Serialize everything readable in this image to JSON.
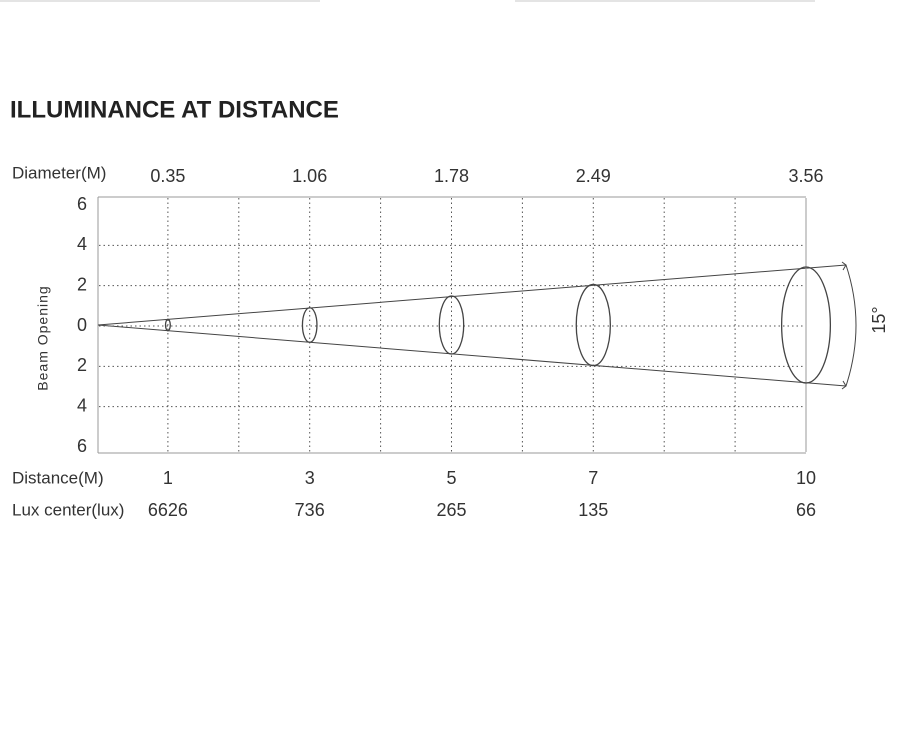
{
  "title": "ILLUMINANCE AT DISTANCE",
  "diagram": {
    "diameter_label": "Diameter(M)",
    "beam_opening_label": "Beam Opening",
    "distance_label": "Distance(M)",
    "lux_label": "Lux center(lux)",
    "beam_angle": "15°",
    "y_labels": [
      6,
      4,
      2,
      0,
      2,
      4,
      6
    ],
    "columns": [
      {
        "distance": 1,
        "diameter": 0.35,
        "lux": 6626
      },
      {
        "distance": 3,
        "diameter": 1.06,
        "lux": 736
      },
      {
        "distance": 5,
        "diameter": 1.78,
        "lux": 265
      },
      {
        "distance": 7,
        "diameter": 2.49,
        "lux": 135
      },
      {
        "distance": 10,
        "diameter": 3.56,
        "lux": 66
      }
    ]
  }
}
